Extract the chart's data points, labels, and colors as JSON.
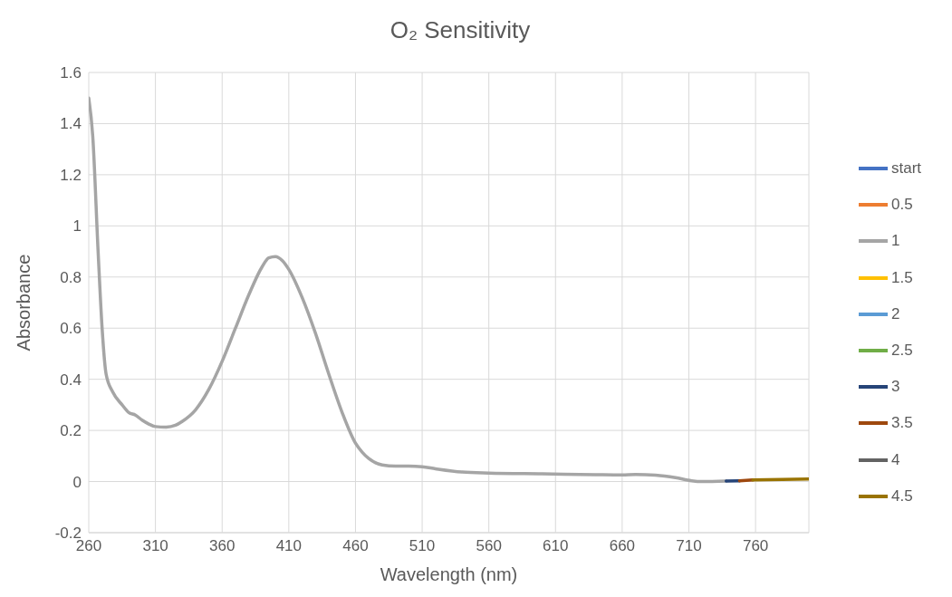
{
  "chart_data": {
    "type": "line",
    "title": "O₂ Sensitivity",
    "xlabel": "Wavelength (nm)",
    "ylabel": "Absorbance",
    "xlim": [
      260,
      800
    ],
    "xticks": [
      260,
      310,
      360,
      410,
      460,
      510,
      560,
      610,
      660,
      710,
      760
    ],
    "ylim": [
      -0.2,
      1.6
    ],
    "yticks": [
      -0.2,
      0,
      0.2,
      0.4,
      0.6,
      0.8,
      1,
      1.2,
      1.4,
      1.6
    ],
    "grid": true,
    "legend": "right",
    "marker": "none",
    "line_style": "solid",
    "series": [
      {
        "name": "start",
        "color": "#4472c4"
      },
      {
        "name": "0.5",
        "color": "#ed7d31"
      },
      {
        "name": "1",
        "color": "#a5a5a5",
        "x": [
          260,
          263,
          267,
          270,
          273,
          278,
          285,
          290,
          295,
          300,
          305,
          310,
          318,
          325,
          330,
          340,
          350,
          360,
          370,
          380,
          390,
          395,
          400,
          405,
          410,
          420,
          430,
          440,
          450,
          460,
          465,
          470,
          480,
          490,
          500,
          510,
          520,
          540,
          560,
          600,
          640,
          660,
          670,
          685,
          700,
          712,
          720,
          738
        ],
        "values": [
          1.5,
          1.35,
          0.9,
          0.6,
          0.42,
          0.35,
          0.3,
          0.27,
          0.26,
          0.24,
          0.225,
          0.215,
          0.213,
          0.22,
          0.235,
          0.28,
          0.36,
          0.47,
          0.6,
          0.73,
          0.84,
          0.875,
          0.88,
          0.865,
          0.83,
          0.72,
          0.58,
          0.42,
          0.27,
          0.15,
          0.115,
          0.09,
          0.065,
          0.06,
          0.06,
          0.058,
          0.05,
          0.037,
          0.033,
          0.03,
          0.027,
          0.026,
          0.028,
          0.025,
          0.015,
          0.003,
          0,
          0.002
        ]
      },
      {
        "name": "1.5",
        "color": "#ffc000"
      },
      {
        "name": "2",
        "color": "#5b9bd5"
      },
      {
        "name": "2.5",
        "color": "#70ad47"
      },
      {
        "name": "3",
        "color": "#264478",
        "x": [
          738,
          748
        ],
        "values": [
          0.002,
          0.003
        ]
      },
      {
        "name": "3.5",
        "color": "#9e480e",
        "x": [
          748,
          758
        ],
        "values": [
          0.003,
          0.006
        ]
      },
      {
        "name": "4",
        "color": "#636363"
      },
      {
        "name": "4.5",
        "color": "#997300",
        "x": [
          758,
          780,
          800
        ],
        "values": [
          0.006,
          0.008,
          0.01
        ]
      }
    ]
  }
}
